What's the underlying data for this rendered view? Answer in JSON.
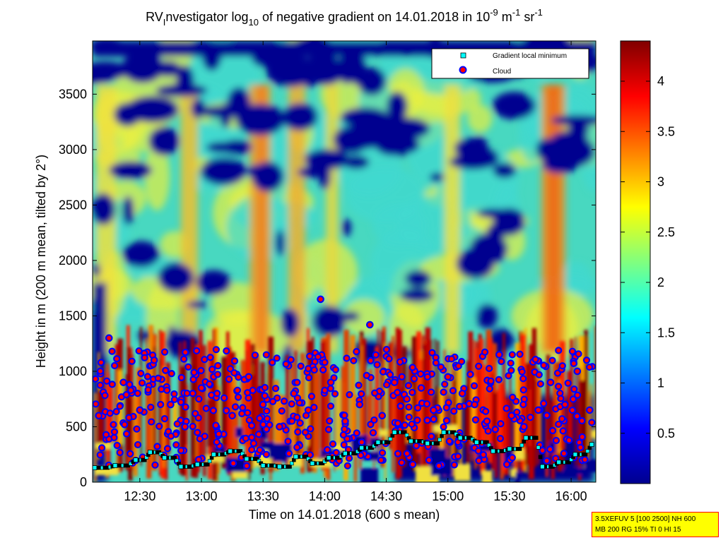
{
  "chart_data": {
    "type": "heatmap",
    "title": {
      "lead": "RV",
      "lead_sub": "I",
      "mid": "nvestigator log",
      "mid_sub": "10",
      "text2": " of negative gradient on 14.01.2018 in 10",
      "exp1": "-9",
      "text3": " m",
      "exp2": "-1",
      "text4": " sr",
      "exp3": "-1"
    },
    "xlabel": "Time on 14.01.2018 (600 s mean)",
    "ylabel": "Height in m (200 m mean, tilted by 2°)",
    "x_ticks": [
      "12:30",
      "13:00",
      "13:30",
      "14:00",
      "14:30",
      "15:00",
      "15:30",
      "16:00"
    ],
    "x_tick_minutes": [
      750,
      780,
      810,
      840,
      870,
      900,
      930,
      960
    ],
    "xlim_minutes": [
      727,
      972
    ],
    "y_ticks": [
      "0",
      "500",
      "1000",
      "1500",
      "2000",
      "2500",
      "3000",
      "3500"
    ],
    "y_tick_values": [
      0,
      500,
      1000,
      1500,
      2000,
      2500,
      3000,
      3500
    ],
    "ylim": [
      0,
      3980
    ],
    "colorbar": {
      "ticks": [
        "0.5",
        "1",
        "1.5",
        "2",
        "2.5",
        "3",
        "3.5",
        "4"
      ],
      "tick_values": [
        0.5,
        1,
        1.5,
        2,
        2.5,
        3,
        3.5,
        4
      ],
      "range": [
        0,
        4.4
      ],
      "colormap": "jet"
    },
    "legend": {
      "placement": "top-right",
      "entries": [
        {
          "label": "Gradient local minimum",
          "marker": "square",
          "color": "#00ffff"
        },
        {
          "label": "Cloud",
          "marker": "circle",
          "color": "#ff0000"
        }
      ]
    },
    "gradient_local_minimum": {
      "x_minutes": [
        728,
        738,
        748,
        755,
        762,
        770,
        778,
        786,
        794,
        802,
        810,
        818,
        826,
        834,
        842,
        850,
        858,
        866,
        874,
        882,
        890,
        898,
        906,
        914,
        922,
        930,
        938,
        946,
        954,
        962,
        970
      ],
      "height_m": [
        130,
        150,
        200,
        270,
        220,
        140,
        160,
        250,
        280,
        210,
        150,
        140,
        230,
        170,
        220,
        260,
        310,
        360,
        450,
        370,
        350,
        450,
        400,
        360,
        280,
        300,
        400,
        140,
        180,
        250,
        340
      ]
    },
    "cloud_heights_m_sample": [
      [
        730,
        600
      ],
      [
        735,
        1300
      ],
      [
        742,
        900
      ],
      [
        750,
        650
      ],
      [
        757,
        1100
      ],
      [
        765,
        700
      ],
      [
        772,
        500
      ],
      [
        780,
        850
      ],
      [
        788,
        1050
      ],
      [
        795,
        600
      ],
      [
        803,
        950
      ],
      [
        810,
        700
      ],
      [
        818,
        500
      ],
      [
        825,
        800
      ],
      [
        832,
        650
      ],
      [
        838,
        1650
      ],
      [
        843,
        900
      ],
      [
        850,
        550
      ],
      [
        857,
        700
      ],
      [
        862,
        1420
      ],
      [
        868,
        600
      ],
      [
        874,
        900
      ],
      [
        880,
        750
      ],
      [
        887,
        850
      ],
      [
        893,
        650
      ],
      [
        900,
        950
      ],
      [
        907,
        800
      ],
      [
        913,
        700
      ],
      [
        919,
        550
      ],
      [
        925,
        1150
      ],
      [
        931,
        600
      ],
      [
        937,
        500
      ],
      [
        944,
        650
      ],
      [
        950,
        900
      ],
      [
        957,
        700
      ],
      [
        963,
        1000
      ],
      [
        969,
        650
      ]
    ]
  },
  "param_box": {
    "line1": "3.5XEFUV 5 [100 2500] NH 600",
    "line2": "MB 200 RG 15% TI 0 HI 15"
  }
}
